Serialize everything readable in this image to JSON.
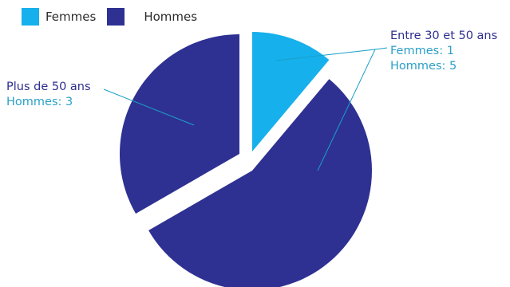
{
  "legend": {
    "items": [
      {
        "label": "Femmes",
        "color": "#16b0ec"
      },
      {
        "label": "Hommes",
        "color": "#2e3192"
      }
    ]
  },
  "colors": {
    "femmes": "#16b0ec",
    "hommes": "#2e3192",
    "leader": "#1aa0c8",
    "title_text": "#2e3192",
    "detail_text": "#2aa0c8"
  },
  "callouts": {
    "right": {
      "title": "Entre 30 et 50 ans",
      "line1": "Femmes: 1",
      "line2": "Hommes: 5"
    },
    "left": {
      "title": "Plus de 50 ans",
      "line1": "Hommes: 3"
    }
  },
  "chart_data": {
    "type": "pie",
    "legend_position": "top-left",
    "slices": [
      {
        "group": "Entre 30 et 50 ans",
        "series": "Femmes",
        "value": 1
      },
      {
        "group": "Entre 30 et 50 ans",
        "series": "Hommes",
        "value": 5
      },
      {
        "group": "Plus de 50 ans",
        "series": "Hommes",
        "value": 3
      }
    ]
  }
}
